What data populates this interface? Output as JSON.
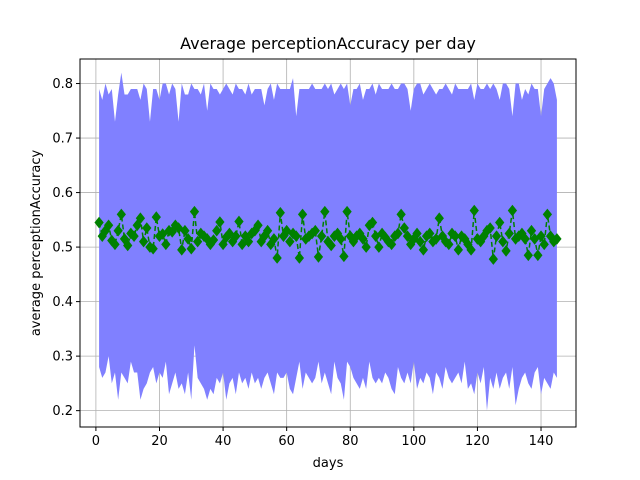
{
  "chart_data": {
    "type": "line",
    "title": "Average perceptionAccuracy per day",
    "xlabel": "days",
    "ylabel": "average perceptionAccuracy",
    "xlim": [
      -5,
      151
    ],
    "ylim": [
      0.17,
      0.845
    ],
    "xticks": [
      0,
      20,
      40,
      60,
      80,
      100,
      120,
      140
    ],
    "yticks": [
      0.2,
      0.3,
      0.4,
      0.5,
      0.6,
      0.7,
      0.8
    ],
    "xtick_labels": [
      "0",
      "20",
      "40",
      "60",
      "80",
      "100",
      "120",
      "140"
    ],
    "ytick_labels": [
      "0.2",
      "0.3",
      "0.4",
      "0.5",
      "0.6",
      "0.7",
      "0.8"
    ],
    "grid": true,
    "colors": {
      "band": "#8080ff",
      "mean": "#008000",
      "grid": "#b0b0b0",
      "axis": "#000000"
    },
    "series": [
      {
        "kind": "band",
        "x": [
          1,
          2,
          3,
          4,
          5,
          6,
          7,
          8,
          9,
          10,
          11,
          12,
          13,
          14,
          15,
          16,
          17,
          18,
          19,
          20,
          21,
          22,
          23,
          24,
          25,
          26,
          27,
          28,
          29,
          30,
          31,
          32,
          33,
          34,
          35,
          36,
          37,
          38,
          39,
          40,
          41,
          42,
          43,
          44,
          45,
          46,
          47,
          48,
          49,
          50,
          51,
          52,
          53,
          54,
          55,
          56,
          57,
          58,
          59,
          60,
          61,
          62,
          63,
          64,
          65,
          66,
          67,
          68,
          69,
          70,
          71,
          72,
          73,
          74,
          75,
          76,
          77,
          78,
          79,
          80,
          81,
          82,
          83,
          84,
          85,
          86,
          87,
          88,
          89,
          90,
          91,
          92,
          93,
          94,
          95,
          96,
          97,
          98,
          99,
          100,
          101,
          102,
          103,
          104,
          105,
          106,
          107,
          108,
          109,
          110,
          111,
          112,
          113,
          114,
          115,
          116,
          117,
          118,
          119,
          120,
          121,
          122,
          123,
          124,
          125,
          126,
          127,
          128,
          129,
          130,
          131,
          132,
          133,
          134,
          135,
          136,
          137,
          138,
          139,
          140,
          141,
          142,
          143,
          144,
          145
        ],
        "upper": [
          0.79,
          0.77,
          0.8,
          0.78,
          0.79,
          0.73,
          0.78,
          0.82,
          0.78,
          0.78,
          0.79,
          0.79,
          0.79,
          0.77,
          0.8,
          0.79,
          0.73,
          0.79,
          0.79,
          0.77,
          0.8,
          0.8,
          0.78,
          0.8,
          0.79,
          0.73,
          0.8,
          0.78,
          0.78,
          0.8,
          0.79,
          0.79,
          0.78,
          0.8,
          0.75,
          0.8,
          0.79,
          0.79,
          0.78,
          0.79,
          0.8,
          0.79,
          0.78,
          0.8,
          0.79,
          0.79,
          0.78,
          0.8,
          0.78,
          0.79,
          0.79,
          0.79,
          0.76,
          0.79,
          0.8,
          0.77,
          0.8,
          0.79,
          0.79,
          0.79,
          0.79,
          0.81,
          0.74,
          0.79,
          0.79,
          0.79,
          0.79,
          0.8,
          0.79,
          0.79,
          0.79,
          0.8,
          0.79,
          0.8,
          0.78,
          0.79,
          0.8,
          0.79,
          0.8,
          0.76,
          0.79,
          0.79,
          0.8,
          0.77,
          0.79,
          0.79,
          0.8,
          0.78,
          0.8,
          0.79,
          0.79,
          0.79,
          0.8,
          0.79,
          0.79,
          0.8,
          0.8,
          0.79,
          0.75,
          0.79,
          0.8,
          0.8,
          0.78,
          0.79,
          0.8,
          0.79,
          0.78,
          0.79,
          0.79,
          0.8,
          0.79,
          0.78,
          0.8,
          0.79,
          0.79,
          0.79,
          0.79,
          0.8,
          0.77,
          0.8,
          0.79,
          0.79,
          0.8,
          0.79,
          0.8,
          0.79,
          0.77,
          0.8,
          0.8,
          0.79,
          0.74,
          0.8,
          0.8,
          0.77,
          0.79,
          0.78,
          0.8,
          0.79,
          0.79,
          0.74,
          0.79,
          0.8,
          0.81,
          0.8,
          0.77
        ],
        "lower": [
          0.28,
          0.26,
          0.27,
          0.3,
          0.25,
          0.27,
          0.22,
          0.27,
          0.26,
          0.25,
          0.29,
          0.27,
          0.27,
          0.22,
          0.24,
          0.25,
          0.27,
          0.28,
          0.25,
          0.27,
          0.26,
          0.29,
          0.23,
          0.25,
          0.27,
          0.24,
          0.25,
          0.23,
          0.27,
          0.22,
          0.32,
          0.26,
          0.25,
          0.24,
          0.22,
          0.24,
          0.23,
          0.26,
          0.25,
          0.27,
          0.22,
          0.25,
          0.26,
          0.23,
          0.27,
          0.25,
          0.26,
          0.24,
          0.27,
          0.25,
          0.26,
          0.24,
          0.26,
          0.27,
          0.25,
          0.23,
          0.27,
          0.26,
          0.26,
          0.27,
          0.24,
          0.23,
          0.26,
          0.29,
          0.24,
          0.27,
          0.26,
          0.25,
          0.26,
          0.29,
          0.25,
          0.27,
          0.25,
          0.23,
          0.29,
          0.26,
          0.25,
          0.22,
          0.29,
          0.28,
          0.26,
          0.25,
          0.24,
          0.26,
          0.24,
          0.29,
          0.26,
          0.25,
          0.26,
          0.25,
          0.27,
          0.26,
          0.24,
          0.23,
          0.28,
          0.26,
          0.25,
          0.27,
          0.25,
          0.29,
          0.24,
          0.26,
          0.25,
          0.27,
          0.26,
          0.23,
          0.27,
          0.26,
          0.24,
          0.28,
          0.26,
          0.25,
          0.26,
          0.27,
          0.25,
          0.29,
          0.24,
          0.25,
          0.23,
          0.27,
          0.25,
          0.28,
          0.2,
          0.26,
          0.24,
          0.27,
          0.24,
          0.26,
          0.27,
          0.24,
          0.28,
          0.21,
          0.24,
          0.26,
          0.27,
          0.25,
          0.24,
          0.27,
          0.28,
          0.23,
          0.26,
          0.25,
          0.24,
          0.27,
          0.26
        ]
      },
      {
        "kind": "mean",
        "x": [
          1,
          2,
          3,
          4,
          5,
          6,
          7,
          8,
          9,
          10,
          11,
          12,
          13,
          14,
          15,
          16,
          17,
          18,
          19,
          20,
          21,
          22,
          23,
          24,
          25,
          26,
          27,
          28,
          29,
          30,
          31,
          32,
          33,
          34,
          35,
          36,
          37,
          38,
          39,
          40,
          41,
          42,
          43,
          44,
          45,
          46,
          47,
          48,
          49,
          50,
          51,
          52,
          53,
          54,
          55,
          56,
          57,
          58,
          59,
          60,
          61,
          62,
          63,
          64,
          65,
          66,
          67,
          68,
          69,
          70,
          71,
          72,
          73,
          74,
          75,
          76,
          77,
          78,
          79,
          80,
          81,
          82,
          83,
          84,
          85,
          86,
          87,
          88,
          89,
          90,
          91,
          92,
          93,
          94,
          95,
          96,
          97,
          98,
          99,
          100,
          101,
          102,
          103,
          104,
          105,
          106,
          107,
          108,
          109,
          110,
          111,
          112,
          113,
          114,
          115,
          116,
          117,
          118,
          119,
          120,
          121,
          122,
          123,
          124,
          125,
          126,
          127,
          128,
          129,
          130,
          131,
          132,
          133,
          134,
          135,
          136,
          137,
          138,
          139,
          140,
          141,
          142,
          143,
          144,
          145
        ],
        "values": [
          0.545,
          0.52,
          0.53,
          0.54,
          0.512,
          0.505,
          0.53,
          0.56,
          0.515,
          0.503,
          0.525,
          0.52,
          0.54,
          0.553,
          0.51,
          0.535,
          0.5,
          0.497,
          0.555,
          0.52,
          0.524,
          0.505,
          0.53,
          0.528,
          0.54,
          0.535,
          0.495,
          0.53,
          0.515,
          0.497,
          0.565,
          0.51,
          0.525,
          0.52,
          0.515,
          0.505,
          0.513,
          0.53,
          0.546,
          0.505,
          0.518,
          0.525,
          0.51,
          0.52,
          0.547,
          0.505,
          0.52,
          0.51,
          0.525,
          0.53,
          0.54,
          0.51,
          0.52,
          0.53,
          0.505,
          0.515,
          0.48,
          0.563,
          0.52,
          0.53,
          0.51,
          0.525,
          0.52,
          0.48,
          0.56,
          0.515,
          0.52,
          0.525,
          0.53,
          0.482,
          0.52,
          0.565,
          0.51,
          0.503,
          0.52,
          0.525,
          0.515,
          0.483,
          0.565,
          0.52,
          0.51,
          0.52,
          0.525,
          0.515,
          0.5,
          0.54,
          0.545,
          0.52,
          0.5,
          0.525,
          0.518,
          0.51,
          0.505,
          0.52,
          0.525,
          0.56,
          0.535,
          0.52,
          0.505,
          0.515,
          0.525,
          0.51,
          0.495,
          0.52,
          0.525,
          0.51,
          0.515,
          0.553,
          0.52,
          0.51,
          0.505,
          0.525,
          0.52,
          0.495,
          0.52,
          0.515,
          0.505,
          0.495,
          0.567,
          0.515,
          0.51,
          0.52,
          0.53,
          0.535,
          0.478,
          0.52,
          0.545,
          0.51,
          0.493,
          0.525,
          0.567,
          0.515,
          0.52,
          0.525,
          0.515,
          0.485,
          0.53,
          0.515,
          0.485,
          0.52,
          0.505,
          0.56,
          0.52,
          0.51,
          0.515
        ]
      }
    ]
  }
}
